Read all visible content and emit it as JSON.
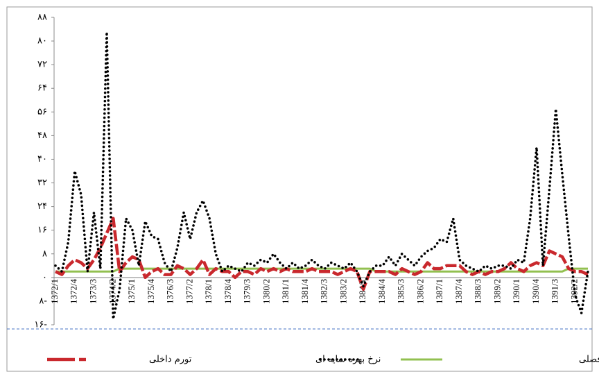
{
  "chart_data": {
    "type": "line",
    "categories": [
      "1372/1",
      null,
      null,
      "1372/4",
      null,
      null,
      "1373/3",
      null,
      null,
      "1374/2",
      null,
      null,
      "1375/1",
      null,
      null,
      "1375/4",
      null,
      null,
      "1376/3",
      null,
      null,
      "1377/2",
      null,
      null,
      "1378/1",
      null,
      null,
      "1378/4",
      null,
      null,
      "1379/3",
      null,
      null,
      "1380/2",
      null,
      null,
      "1381/1",
      null,
      null,
      "1381/4",
      null,
      null,
      "1382/3",
      null,
      null,
      "1383/2",
      null,
      null,
      "1384/1",
      null,
      null,
      "1384/4",
      null,
      null,
      "1385/3",
      null,
      null,
      "1386/2",
      null,
      null,
      "1387/1",
      null,
      null,
      "1387/4",
      null,
      null,
      "1388/3",
      null,
      null,
      "1389/2",
      null,
      null,
      "1390/1",
      null,
      null,
      "1390/4",
      null,
      null,
      "1391/3",
      null,
      null,
      "1392/2",
      null,
      null
    ],
    "series": [
      {
        "name": "تورم داخلی",
        "color": "#c9282d",
        "style": "dashed",
        "values": [
          2,
          1,
          4,
          6,
          5,
          3,
          6,
          10,
          15,
          20,
          2,
          5,
          7,
          6,
          0,
          2,
          3,
          1,
          1,
          4,
          3,
          1,
          3,
          6,
          1,
          3,
          2,
          2,
          0,
          2,
          2,
          1,
          3,
          2,
          3,
          2,
          3,
          2,
          2,
          2,
          3,
          2,
          2,
          2,
          1,
          2,
          3,
          2,
          -4,
          2,
          2,
          2,
          2,
          1,
          3,
          2,
          1,
          2,
          5,
          3,
          3,
          4,
          4,
          4,
          2,
          1,
          2,
          1,
          2,
          2,
          3,
          5,
          3,
          2,
          4,
          5,
          4,
          9,
          8,
          7,
          3,
          2,
          2,
          1
        ]
      },
      {
        "name": "نرخ بهره سایه ای",
        "color": "#000000",
        "style": "dotted",
        "values": [
          4,
          2,
          12,
          36,
          28,
          2,
          22,
          3,
          83,
          -14,
          -4,
          20,
          16,
          4,
          19,
          14,
          13,
          5,
          2,
          10,
          22,
          13,
          22,
          26,
          20,
          8,
          2,
          4,
          3,
          2,
          5,
          4,
          6,
          5,
          8,
          5,
          3,
          5,
          3,
          4,
          6,
          4,
          3,
          5,
          4,
          3,
          5,
          2,
          -3,
          2,
          4,
          4,
          7,
          4,
          8,
          6,
          4,
          7,
          9,
          10,
          13,
          12,
          20,
          6,
          4,
          3,
          2,
          4,
          3,
          4,
          4,
          3,
          6,
          5,
          20,
          44,
          4,
          30,
          57,
          35,
          14,
          -6,
          -12,
          2
        ]
      },
      {
        "name": "نرخ بهره بانکی- فصلی",
        "color": "#92c050",
        "style": "solid",
        "values": [
          2,
          2,
          2,
          2,
          2,
          2,
          2,
          2,
          2,
          2,
          3,
          3,
          3,
          3,
          3,
          3,
          3,
          3,
          3,
          3,
          3,
          3,
          3,
          3,
          3,
          3,
          3,
          3,
          3,
          3,
          3,
          3,
          3,
          3,
          3,
          3,
          3,
          3,
          3,
          3,
          3,
          3,
          3,
          3,
          3,
          3,
          3,
          3,
          3,
          3,
          2,
          2,
          2,
          2,
          2,
          2,
          2,
          2,
          2,
          2,
          2,
          2,
          2,
          2,
          2,
          2,
          2,
          2,
          2,
          2,
          2,
          2,
          2,
          2,
          2,
          2,
          2,
          2,
          2,
          2,
          3,
          3,
          3,
          3
        ]
      }
    ],
    "ylim": [
      -16,
      88
    ],
    "yticks": [
      {
        "value": 88,
        "label": "۸۸"
      },
      {
        "value": 80,
        "label": "۸۰"
      },
      {
        "value": 72,
        "label": "۷۲"
      },
      {
        "value": 64,
        "label": "۶۴"
      },
      {
        "value": 56,
        "label": "۵۶"
      },
      {
        "value": 48,
        "label": "۴۸"
      },
      {
        "value": 40,
        "label": "۴۰"
      },
      {
        "value": 32,
        "label": "۳۲"
      },
      {
        "value": 24,
        "label": "۲۴"
      },
      {
        "value": 16,
        "label": "۱۶"
      },
      {
        "value": 8,
        "label": "۸"
      },
      {
        "value": 0,
        "label": "۰"
      },
      {
        "value": -8,
        "label": "۸-"
      },
      {
        "value": -16,
        "label": "۱۶-"
      }
    ],
    "grid": false
  }
}
